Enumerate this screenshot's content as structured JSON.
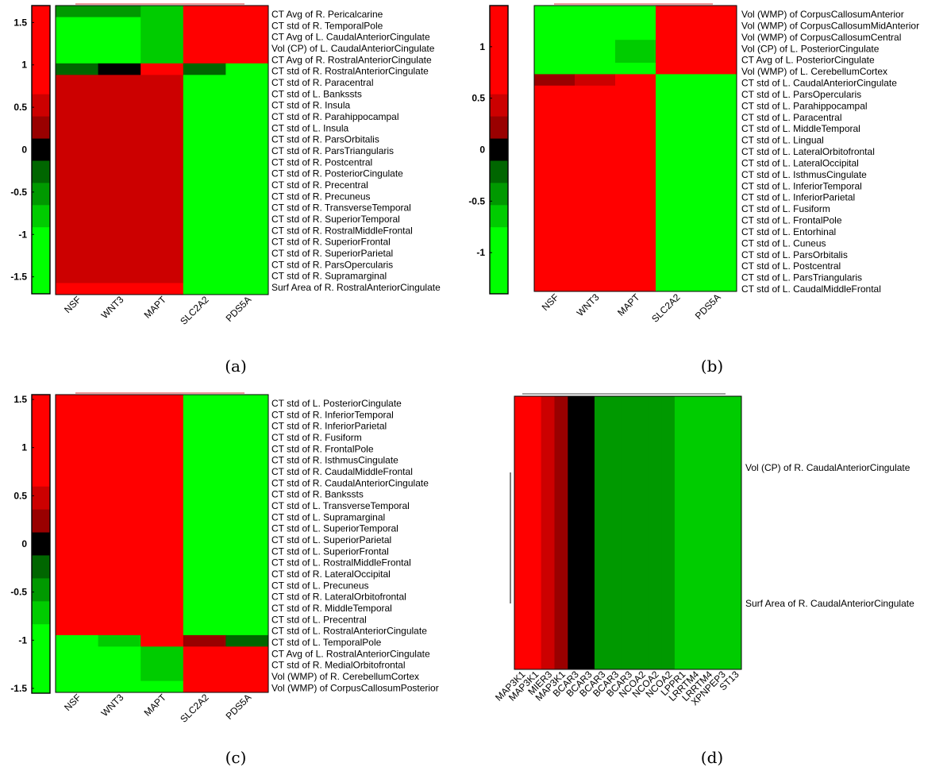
{
  "colors": {
    "red": "#ff0000",
    "dark_red": "#cc0000",
    "maroon": "#990000",
    "dark_maroon": "#660000",
    "black": "#000000",
    "dark_green": "#006600",
    "mid_green": "#009900",
    "green": "#00cc00",
    "bright_green": "#00ff00",
    "lighter_green": "#22dd22"
  },
  "chart_data": [
    {
      "panel": "a",
      "type": "heatmap",
      "caption": "(a)",
      "colorbar": {
        "ticks": [
          "1.5",
          "1",
          "0.5",
          "0",
          "-0.5",
          "-1",
          "-1.5"
        ],
        "tick_values": [
          1.5,
          1,
          0.5,
          0,
          -0.5,
          -1,
          -1.5
        ],
        "range": [
          -1.7,
          1.7
        ],
        "swatches": [
          "red",
          "red",
          "red",
          "red",
          "dark_red",
          "maroon",
          "black",
          "dark_green",
          "mid_green",
          "green",
          "bright_green",
          "bright_green",
          "bright_green"
        ]
      },
      "columns": [
        "NSF",
        "WNT3",
        "MAPT",
        "SLC2A2",
        "PDS5A"
      ],
      "rows": [
        "CT Avg of R. Pericalcarine",
        "CT std of R. TemporalPole",
        "CT Avg of L. CaudalAnteriorCingulate",
        "Vol (CP) of L. CaudalAnteriorCingulate",
        "CT Avg of R. RostralAnteriorCingulate",
        "CT std of R. RostralAnteriorCingulate",
        "CT std of R. Paracentral",
        "CT std of L. Bankssts",
        "CT std of R. Insula",
        "CT std of R. Parahippocampal",
        "CT std of L. Insula",
        "CT std of R. ParsOrbitalis",
        "CT std of R. ParsTriangularis",
        "CT std of R. Postcentral",
        "CT std of R. PosteriorCingulate",
        "CT std of R. Precentral",
        "CT std of R. Precuneus",
        "CT std of R. TransverseTemporal",
        "CT std of R. SuperiorTemporal",
        "CT std of R. RostralMiddleFrontal",
        "CT std of R. SuperiorFrontal",
        "CT std of R. SuperiorParietal",
        "CT std of R. ParsOpercularis",
        "CT std of R. Supramarginal",
        "Surf Area of R. RostralAnteriorCingulate"
      ],
      "cells": [
        [
          "mid_green",
          "mid_green",
          "green",
          "red",
          "red"
        ],
        [
          "bright_green",
          "bright_green",
          "green",
          "red",
          "red"
        ],
        [
          "bright_green",
          "bright_green",
          "green",
          "red",
          "red"
        ],
        [
          "bright_green",
          "bright_green",
          "green",
          "red",
          "red"
        ],
        [
          "bright_green",
          "bright_green",
          "green",
          "red",
          "red"
        ],
        [
          "dark_green",
          "black",
          "red",
          "dark_green",
          "bright_green"
        ],
        [
          "dark_red",
          "dark_red",
          "dark_red",
          "bright_green",
          "bright_green"
        ],
        [
          "dark_red",
          "dark_red",
          "dark_red",
          "bright_green",
          "bright_green"
        ],
        [
          "dark_red",
          "dark_red",
          "dark_red",
          "bright_green",
          "bright_green"
        ],
        [
          "dark_red",
          "dark_red",
          "dark_red",
          "bright_green",
          "bright_green"
        ],
        [
          "dark_red",
          "dark_red",
          "dark_red",
          "bright_green",
          "bright_green"
        ],
        [
          "dark_red",
          "dark_red",
          "dark_red",
          "bright_green",
          "bright_green"
        ],
        [
          "dark_red",
          "dark_red",
          "dark_red",
          "bright_green",
          "bright_green"
        ],
        [
          "dark_red",
          "dark_red",
          "dark_red",
          "bright_green",
          "bright_green"
        ],
        [
          "dark_red",
          "dark_red",
          "dark_red",
          "bright_green",
          "bright_green"
        ],
        [
          "dark_red",
          "dark_red",
          "dark_red",
          "bright_green",
          "bright_green"
        ],
        [
          "dark_red",
          "dark_red",
          "dark_red",
          "bright_green",
          "bright_green"
        ],
        [
          "dark_red",
          "dark_red",
          "dark_red",
          "bright_green",
          "bright_green"
        ],
        [
          "dark_red",
          "dark_red",
          "dark_red",
          "bright_green",
          "bright_green"
        ],
        [
          "dark_red",
          "dark_red",
          "dark_red",
          "bright_green",
          "bright_green"
        ],
        [
          "dark_red",
          "dark_red",
          "dark_red",
          "bright_green",
          "bright_green"
        ],
        [
          "dark_red",
          "dark_red",
          "dark_red",
          "bright_green",
          "bright_green"
        ],
        [
          "dark_red",
          "dark_red",
          "dark_red",
          "bright_green",
          "bright_green"
        ],
        [
          "dark_red",
          "dark_red",
          "dark_red",
          "bright_green",
          "bright_green"
        ],
        [
          "red",
          "red",
          "red",
          "bright_green",
          "bright_green"
        ]
      ]
    },
    {
      "panel": "b",
      "type": "heatmap",
      "caption": "(b)",
      "colorbar": {
        "ticks": [
          "1",
          "0.5",
          "0",
          "-0.5",
          "-1"
        ],
        "tick_values": [
          1,
          0.5,
          0,
          -0.5,
          -1
        ],
        "range": [
          -1.4,
          1.4
        ],
        "swatches": [
          "red",
          "red",
          "red",
          "red",
          "dark_red",
          "maroon",
          "black",
          "dark_green",
          "mid_green",
          "green",
          "bright_green",
          "bright_green",
          "bright_green"
        ]
      },
      "columns": [
        "NSF",
        "WNT3",
        "MAPT",
        "SLC2A2",
        "PDS5A"
      ],
      "rows": [
        "Vol (WMP) of CorpusCallosumAnterior",
        "Vol (WMP) of CorpusCallosumMidAnterior",
        "Vol (WMP) of CorpusCallosumCentral",
        "Vol (CP) of L. PosteriorCingulate",
        "CT Avg of L. PosteriorCingulate",
        "Vol (WMP) of L. CerebellumCortex",
        "CT std of L. CaudalAnteriorCingulate",
        "CT std of L. ParsOpercularis",
        "CT std of L. Parahippocampal",
        "CT std of L. Paracentral",
        "CT std of L. MiddleTemporal",
        "CT std of L. Lingual",
        "CT std of L. LateralOrbitofrontal",
        "CT std of L. LateralOccipital",
        "CT std of L. IsthmusCingulate",
        "CT std of L. InferiorTemporal",
        "CT std of L. InferiorParietal",
        "CT std of L. Fusiform",
        "CT std of L. FrontalPole",
        "CT std of L. Entorhinal",
        "CT std of L. Cuneus",
        "CT std of L. ParsOrbitalis",
        "CT std of L. Postcentral",
        "CT std of L. ParsTriangularis",
        "CT std of L. CaudalMiddleFrontal"
      ],
      "cells": [
        [
          "bright_green",
          "bright_green",
          "bright_green",
          "red",
          "red"
        ],
        [
          "bright_green",
          "bright_green",
          "bright_green",
          "red",
          "red"
        ],
        [
          "bright_green",
          "bright_green",
          "bright_green",
          "red",
          "red"
        ],
        [
          "bright_green",
          "bright_green",
          "green",
          "red",
          "red"
        ],
        [
          "bright_green",
          "bright_green",
          "green",
          "red",
          "red"
        ],
        [
          "bright_green",
          "bright_green",
          "bright_green",
          "red",
          "red"
        ],
        [
          "maroon",
          "dark_red",
          "red",
          "bright_green",
          "bright_green"
        ],
        [
          "red",
          "red",
          "red",
          "bright_green",
          "bright_green"
        ],
        [
          "red",
          "red",
          "red",
          "bright_green",
          "bright_green"
        ],
        [
          "red",
          "red",
          "red",
          "bright_green",
          "bright_green"
        ],
        [
          "red",
          "red",
          "red",
          "bright_green",
          "bright_green"
        ],
        [
          "red",
          "red",
          "red",
          "bright_green",
          "bright_green"
        ],
        [
          "red",
          "red",
          "red",
          "bright_green",
          "bright_green"
        ],
        [
          "red",
          "red",
          "red",
          "bright_green",
          "bright_green"
        ],
        [
          "red",
          "red",
          "red",
          "bright_green",
          "bright_green"
        ],
        [
          "red",
          "red",
          "red",
          "bright_green",
          "bright_green"
        ],
        [
          "red",
          "red",
          "red",
          "bright_green",
          "bright_green"
        ],
        [
          "red",
          "red",
          "red",
          "bright_green",
          "bright_green"
        ],
        [
          "red",
          "red",
          "red",
          "bright_green",
          "bright_green"
        ],
        [
          "red",
          "red",
          "red",
          "bright_green",
          "bright_green"
        ],
        [
          "red",
          "red",
          "red",
          "bright_green",
          "bright_green"
        ],
        [
          "red",
          "red",
          "red",
          "bright_green",
          "bright_green"
        ],
        [
          "red",
          "red",
          "red",
          "bright_green",
          "bright_green"
        ],
        [
          "red",
          "red",
          "red",
          "bright_green",
          "bright_green"
        ],
        [
          "red",
          "red",
          "red",
          "bright_green",
          "bright_green"
        ]
      ]
    },
    {
      "panel": "c",
      "type": "heatmap",
      "caption": "(c)",
      "colorbar": {
        "ticks": [
          "1.5",
          "1",
          "0.5",
          "0",
          "-0.5",
          "-1",
          "-1.5"
        ],
        "tick_values": [
          1.5,
          1,
          0.5,
          0,
          -0.5,
          -1,
          -1.5
        ],
        "range": [
          -1.55,
          1.55
        ],
        "swatches": [
          "red",
          "red",
          "red",
          "red",
          "dark_red",
          "maroon",
          "black",
          "dark_green",
          "mid_green",
          "green",
          "bright_green",
          "bright_green",
          "bright_green"
        ]
      },
      "columns": [
        "NSF",
        "WNT3",
        "MAPT",
        "SLC2A2",
        "PDS5A"
      ],
      "rows": [
        "CT std of L. PosteriorCingulate",
        "CT std of R. InferiorTemporal",
        "CT std of R. InferiorParietal",
        "CT std of R. Fusiform",
        "CT std of R. FrontalPole",
        "CT std of R. IsthmusCingulate",
        "CT std of R. CaudalMiddleFrontal",
        "CT std of R. CaudalAnteriorCingulate",
        "CT std of R. Bankssts",
        "CT std of L. TransverseTemporal",
        "CT std of L. Supramarginal",
        "CT std of L. SuperiorTemporal",
        "CT std of L. SuperiorParietal",
        "CT std of L. SuperiorFrontal",
        "CT std of L. RostralMiddleFrontal",
        "CT std of R. LateralOccipital",
        "CT std of L. Precuneus",
        "CT std of R. LateralOrbitofrontal",
        "CT std of R. MiddleTemporal",
        "CT std of L. Precentral",
        "CT std of L. RostralAnteriorCingulate",
        "CT std of L. TemporalPole",
        "CT Avg of L. RostralAnteriorCingulate",
        "CT std of R. MedialOrbitofrontal",
        "Vol (WMP) of R. CerebellumCortex",
        "Vol (WMP) of CorpusCallosumPosterior"
      ],
      "cells": [
        [
          "red",
          "red",
          "red",
          "bright_green",
          "bright_green"
        ],
        [
          "red",
          "red",
          "red",
          "bright_green",
          "bright_green"
        ],
        [
          "red",
          "red",
          "red",
          "bright_green",
          "bright_green"
        ],
        [
          "red",
          "red",
          "red",
          "bright_green",
          "bright_green"
        ],
        [
          "red",
          "red",
          "red",
          "bright_green",
          "bright_green"
        ],
        [
          "red",
          "red",
          "red",
          "bright_green",
          "bright_green"
        ],
        [
          "red",
          "red",
          "red",
          "bright_green",
          "bright_green"
        ],
        [
          "red",
          "red",
          "red",
          "bright_green",
          "bright_green"
        ],
        [
          "red",
          "red",
          "red",
          "bright_green",
          "bright_green"
        ],
        [
          "red",
          "red",
          "red",
          "bright_green",
          "bright_green"
        ],
        [
          "red",
          "red",
          "red",
          "bright_green",
          "bright_green"
        ],
        [
          "red",
          "red",
          "red",
          "bright_green",
          "bright_green"
        ],
        [
          "red",
          "red",
          "red",
          "bright_green",
          "bright_green"
        ],
        [
          "red",
          "red",
          "red",
          "bright_green",
          "bright_green"
        ],
        [
          "red",
          "red",
          "red",
          "bright_green",
          "bright_green"
        ],
        [
          "red",
          "red",
          "red",
          "bright_green",
          "bright_green"
        ],
        [
          "red",
          "red",
          "red",
          "bright_green",
          "bright_green"
        ],
        [
          "red",
          "red",
          "red",
          "bright_green",
          "bright_green"
        ],
        [
          "red",
          "red",
          "red",
          "bright_green",
          "bright_green"
        ],
        [
          "red",
          "red",
          "red",
          "bright_green",
          "bright_green"
        ],
        [
          "red",
          "red",
          "red",
          "bright_green",
          "bright_green"
        ],
        [
          "bright_green",
          "green",
          "red",
          "maroon",
          "dark_green"
        ],
        [
          "bright_green",
          "bright_green",
          "green",
          "red",
          "red"
        ],
        [
          "bright_green",
          "bright_green",
          "green",
          "red",
          "red"
        ],
        [
          "bright_green",
          "bright_green",
          "green",
          "red",
          "red"
        ],
        [
          "bright_green",
          "bright_green",
          "bright_green",
          "red",
          "red"
        ]
      ]
    },
    {
      "panel": "d",
      "type": "heatmap",
      "caption": "(d)",
      "columns": [
        "MAP3K1",
        "MAP3K1",
        "MIER3",
        "MAP3K1",
        "BCAR3",
        "BCAR3",
        "BCAR3",
        "BCAR3",
        "BCAR3",
        "NCOA2",
        "NCOA2",
        "NCOA2",
        "LPPR1",
        "LRRTM4",
        "LRRTM4",
        "XPNPEP3",
        "ST13"
      ],
      "rows": [
        "Vol (CP) of R. CaudalAnteriorCingulate",
        "Surf Area of R. CaudalAnteriorCingulate"
      ],
      "column_colors": [
        "red",
        "red",
        "dark_red",
        "maroon",
        "black",
        "black",
        "mid_green",
        "mid_green",
        "mid_green",
        "mid_green",
        "mid_green",
        "mid_green",
        "green",
        "green",
        "green",
        "green",
        "green"
      ]
    }
  ]
}
